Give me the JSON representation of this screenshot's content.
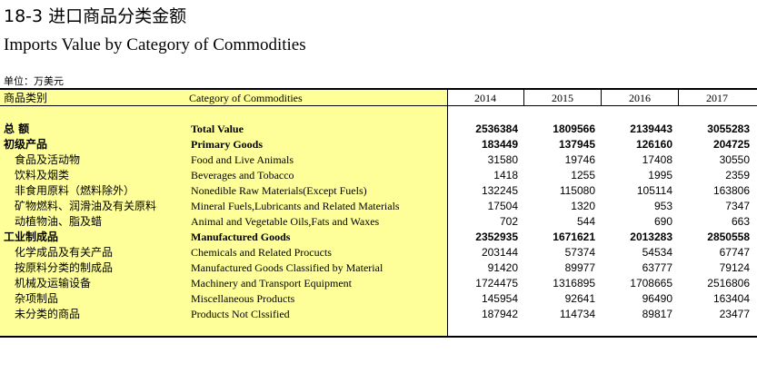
{
  "title_cn": "18-3 进口商品分类金额",
  "title_en": "Imports Value by Category of Commodities",
  "unit": "单位：万美元",
  "headers": {
    "cn": "商品类别",
    "en": "Category of Commodities",
    "years": [
      "2014",
      "2015",
      "2016",
      "2017"
    ]
  },
  "rows": [
    {
      "cn": "总  额",
      "en": "Total Value",
      "values": [
        "2536384",
        "1809566",
        "2139443",
        "3055283"
      ],
      "bold": true,
      "indent": 0
    },
    {
      "cn": "初级产品",
      "en": "Primary Goods",
      "values": [
        "183449",
        "137945",
        "126160",
        "204725"
      ],
      "bold": true,
      "indent": 0
    },
    {
      "cn": "食品及活动物",
      "en": "Food and Live Animals",
      "values": [
        "31580",
        "19746",
        "17408",
        "30550"
      ],
      "bold": false,
      "indent": 1
    },
    {
      "cn": "饮料及烟类",
      "en": "Beverages and Tobacco",
      "values": [
        "1418",
        "1255",
        "1995",
        "2359"
      ],
      "bold": false,
      "indent": 1
    },
    {
      "cn": "非食用原料（燃料除外）",
      "en": "Nonedible Raw Materials(Except Fuels)",
      "values": [
        "132245",
        "115080",
        "105114",
        "163806"
      ],
      "bold": false,
      "indent": 1
    },
    {
      "cn": "矿物燃料、润滑油及有关原料",
      "en": "Mineral Fuels,Lubricants and Related Materials",
      "values": [
        "17504",
        "1320",
        "953",
        "7347"
      ],
      "bold": false,
      "indent": 1
    },
    {
      "cn": "动植物油、脂及蜡",
      "en": "Animal and Vegetable Oils,Fats and Waxes",
      "values": [
        "702",
        "544",
        "690",
        "663"
      ],
      "bold": false,
      "indent": 1
    },
    {
      "cn": "工业制成品",
      "en": "Manufactured Goods",
      "values": [
        "2352935",
        "1671621",
        "2013283",
        "2850558"
      ],
      "bold": true,
      "indent": 0
    },
    {
      "cn": "化学成品及有关产品",
      "en": "Chemicals and Related Procucts",
      "values": [
        "203144",
        "57374",
        "54534",
        "67747"
      ],
      "bold": false,
      "indent": 1
    },
    {
      "cn": "按原料分类的制成品",
      "en": "Manufactured Goods Classified by Material",
      "values": [
        "91420",
        "89977",
        "63777",
        "79124"
      ],
      "bold": false,
      "indent": 1
    },
    {
      "cn": "机械及运输设备",
      "en": "Machinery and Transport Equipment",
      "values": [
        "1724475",
        "1316895",
        "1708665",
        "2516806"
      ],
      "bold": false,
      "indent": 1
    },
    {
      "cn": "杂项制品",
      "en": "Miscellaneous Products",
      "values": [
        "145954",
        "92641",
        "96490",
        "163404"
      ],
      "bold": false,
      "indent": 1
    },
    {
      "cn": "未分类的商品",
      "en": "Products Not Clssified",
      "values": [
        "187942",
        "114734",
        "89817",
        "23477"
      ],
      "bold": false,
      "indent": 1
    }
  ]
}
